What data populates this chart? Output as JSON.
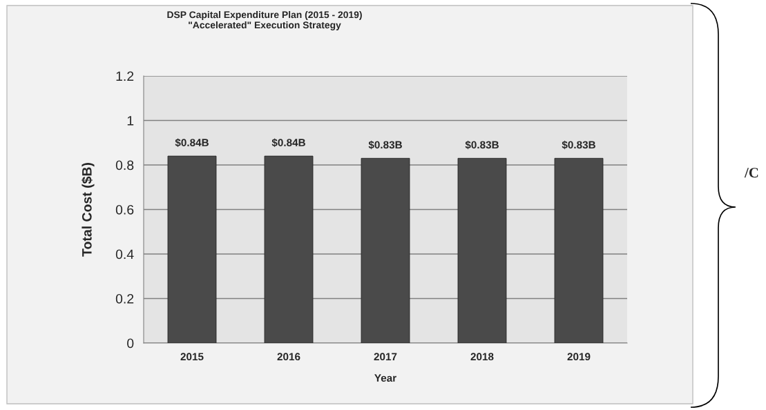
{
  "chart_data": {
    "type": "bar",
    "title": "DSP Capital Expenditure Plan (2015 - 2019)\n\"Accelerated\" Execution Strategy",
    "xlabel": "Year",
    "ylabel": "Total Cost ($B)",
    "categories": [
      "2015",
      "2016",
      "2017",
      "2018",
      "2019"
    ],
    "values": [
      0.84,
      0.84,
      0.83,
      0.83,
      0.83
    ],
    "value_labels": [
      "$0.84B",
      "$0.84B",
      "$0.83B",
      "$0.83B",
      "$0.83B"
    ],
    "color": "#4a4a4a",
    "ylim": [
      0,
      1.2
    ],
    "yticks": [
      0,
      0.2,
      0.4,
      0.6,
      0.8,
      1,
      1.2
    ],
    "grid": "y",
    "annotations": [
      "/C"
    ]
  }
}
